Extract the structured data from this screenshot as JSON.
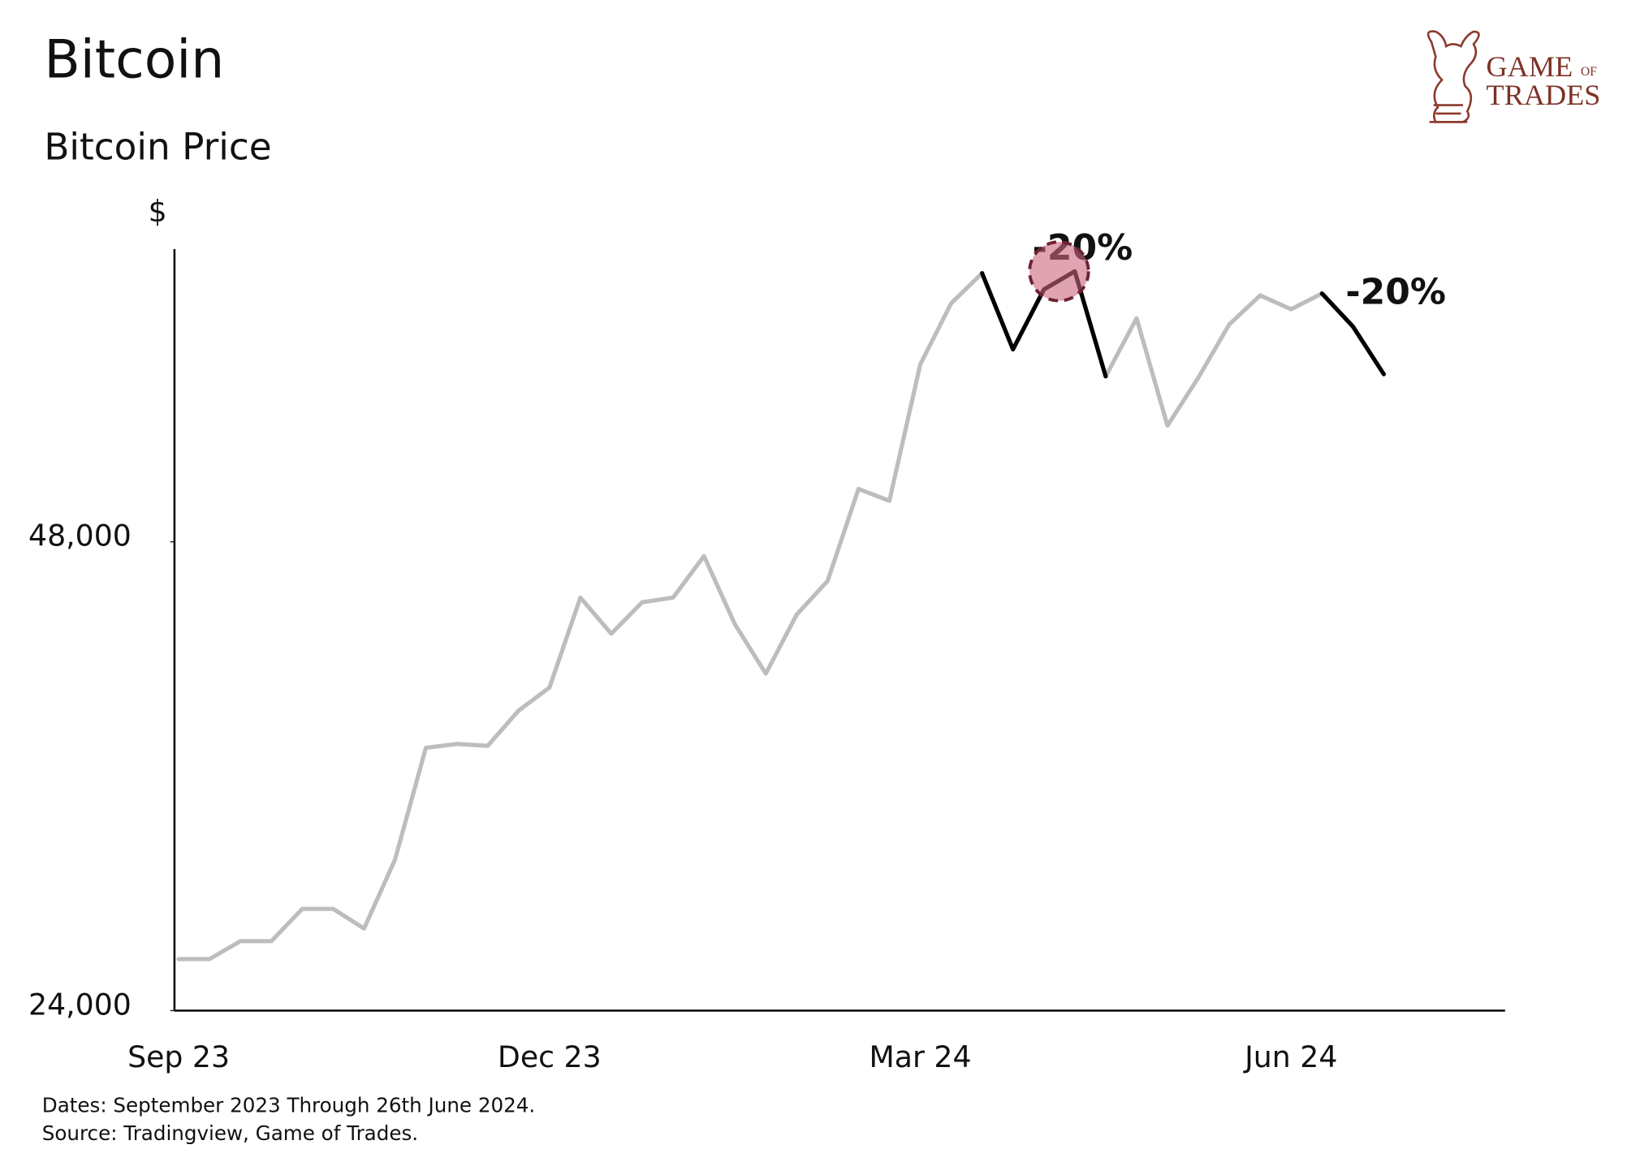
{
  "chart_data": {
    "type": "line",
    "title": "Bitcoin",
    "subtitle": "Bitcoin Price",
    "ylabel": "$",
    "categories": [
      "Sep 23",
      null,
      null,
      null,
      null,
      null,
      null,
      null,
      null,
      null,
      null,
      null,
      "Dec 23",
      null,
      null,
      null,
      null,
      null,
      null,
      null,
      null,
      null,
      null,
      null,
      "Mar 24",
      null,
      null,
      null,
      null,
      null,
      null,
      null,
      null,
      null,
      null,
      null,
      "Jun 24",
      null,
      null,
      null
    ],
    "series": [
      {
        "color": "#bdbdbd",
        "values": [
          25900,
          25900,
          26600,
          26600,
          27900,
          27900,
          27100,
          30000,
          35400,
          35600,
          35500,
          37400,
          38700,
          44200,
          41900,
          43900,
          44200,
          47000,
          42500,
          39500,
          43100,
          45300,
          51900,
          51000,
          62400,
          68300,
          71400,
          63800,
          69700,
          71600,
          61300,
          66800,
          57000,
          61200,
          66200,
          69100,
          67700,
          69300,
          66000,
          61500
        ]
      },
      {
        "color": "#000000",
        "values": [
          null,
          null,
          null,
          null,
          null,
          null,
          null,
          null,
          null,
          null,
          null,
          null,
          null,
          null,
          null,
          null,
          null,
          null,
          null,
          null,
          null,
          null,
          null,
          null,
          null,
          null,
          71400,
          63800,
          69700,
          71600,
          61300,
          null,
          null,
          null,
          null,
          null,
          null,
          69300,
          66000,
          61500
        ]
      }
    ],
    "log_scale": true,
    "ylim": [
      24000,
      74000
    ],
    "yticks": [
      {
        "value": 24000,
        "label": "24,000"
      },
      {
        "value": 48000,
        "label": "48,000"
      }
    ],
    "annotations": [
      "-20%",
      "-20%"
    ],
    "notes": [
      "Dates: September 2023 Through 26th June 2024.",
      "Source: Tradingview, Game of Trades."
    ],
    "logo": {
      "line1": "GAME",
      "small": "OF",
      "line2": "TRADES"
    }
  }
}
